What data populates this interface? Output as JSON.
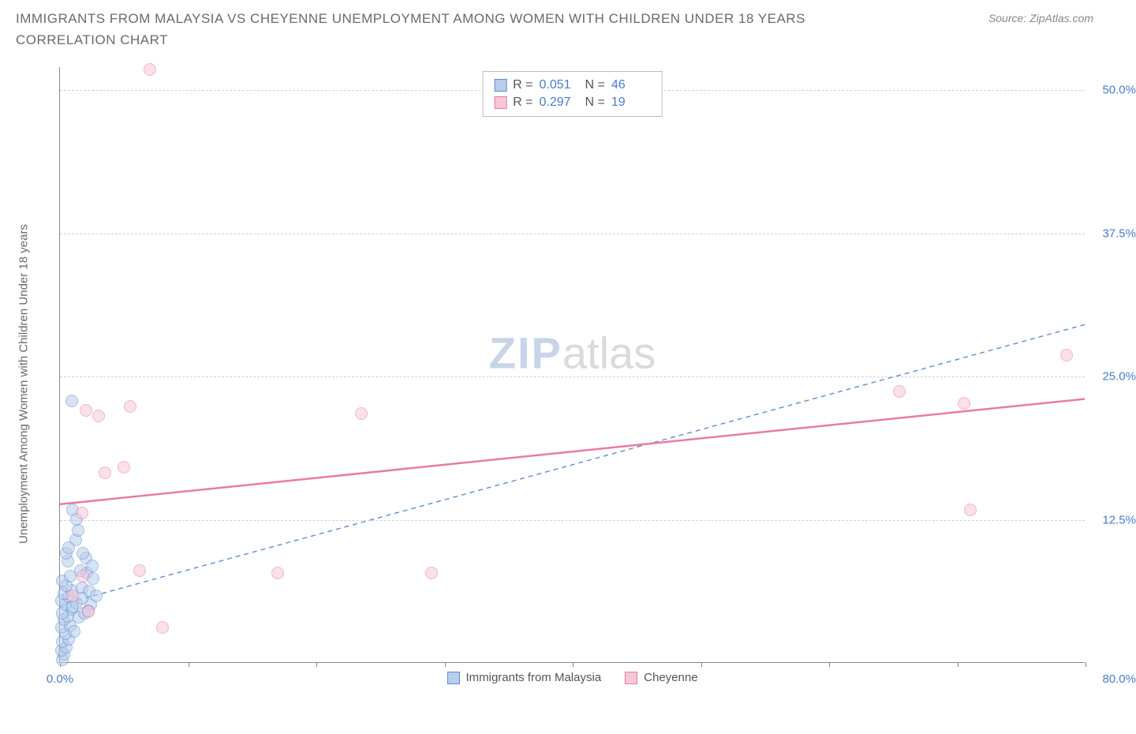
{
  "title": "IMMIGRANTS FROM MALAYSIA VS CHEYENNE UNEMPLOYMENT AMONG WOMEN WITH CHILDREN UNDER 18 YEARS CORRELATION CHART",
  "source": "Source: ZipAtlas.com",
  "y_axis_label": "Unemployment Among Women with Children Under 18 years",
  "watermark_a": "ZIP",
  "watermark_b": "atlas",
  "chart": {
    "type": "scatter",
    "background_color": "#ffffff",
    "grid_color": "#d0d0d0",
    "axis_color": "#888888",
    "tick_label_color": "#4a7bc8",
    "xlim": [
      0,
      80
    ],
    "ylim": [
      0,
      52
    ],
    "y_ticks": [
      12.5,
      25.0,
      37.5,
      50.0
    ],
    "y_tick_labels": [
      "12.5%",
      "25.0%",
      "37.5%",
      "50.0%"
    ],
    "x_ticks": [
      0,
      10,
      20,
      30,
      40,
      50,
      60,
      70,
      80
    ],
    "x_left_label": "0.0%",
    "x_right_label": "80.0%",
    "marker_radius": 8,
    "series": [
      {
        "name": "Immigrants from Malaysia",
        "fill": "#b7cdeb",
        "stroke": "#5e8bd0",
        "fill_opacity": 0.55,
        "R": "0.051",
        "N": "46",
        "trend": {
          "x1": 0,
          "y1": 5.0,
          "x2": 80,
          "y2": 29.5,
          "dash": "6,5",
          "width": 1.4
        },
        "points": [
          [
            0.2,
            0.2
          ],
          [
            0.3,
            0.7
          ],
          [
            0.1,
            1.0
          ],
          [
            0.5,
            1.3
          ],
          [
            0.2,
            1.8
          ],
          [
            0.7,
            2.0
          ],
          [
            0.4,
            2.5
          ],
          [
            0.1,
            3.0
          ],
          [
            0.8,
            3.2
          ],
          [
            0.3,
            3.7
          ],
          [
            0.6,
            4.0
          ],
          [
            0.2,
            4.3
          ],
          [
            0.9,
            4.6
          ],
          [
            0.4,
            5.0
          ],
          [
            0.1,
            5.4
          ],
          [
            0.7,
            5.7
          ],
          [
            0.3,
            6.0
          ],
          [
            0.9,
            6.3
          ],
          [
            0.5,
            6.7
          ],
          [
            0.2,
            7.1
          ],
          [
            0.8,
            7.5
          ],
          [
            1.3,
            5.2
          ],
          [
            1.5,
            3.9
          ],
          [
            1.1,
            2.7
          ],
          [
            1.7,
            6.5
          ],
          [
            1.9,
            4.3
          ],
          [
            2.1,
            7.8
          ],
          [
            2.4,
            5.0
          ],
          [
            2.0,
            9.1
          ],
          [
            1.2,
            10.7
          ],
          [
            1.4,
            11.5
          ],
          [
            1.0,
            13.3
          ],
          [
            0.6,
            8.8
          ],
          [
            1.6,
            8.0
          ],
          [
            1.8,
            9.5
          ],
          [
            2.3,
            6.2
          ],
          [
            2.6,
            7.3
          ],
          [
            2.2,
            4.5
          ],
          [
            0.9,
            22.8
          ],
          [
            2.8,
            5.8
          ],
          [
            1.3,
            12.5
          ],
          [
            0.5,
            9.5
          ],
          [
            1.0,
            4.8
          ],
          [
            0.7,
            10.0
          ],
          [
            2.5,
            8.4
          ],
          [
            1.7,
            5.6
          ]
        ]
      },
      {
        "name": "Cheyenne",
        "fill": "#f7c7d7",
        "stroke": "#e87ba4",
        "fill_opacity": 0.55,
        "R": "0.297",
        "N": "19",
        "trend": {
          "x1": 0,
          "y1": 13.8,
          "x2": 80,
          "y2": 23.0,
          "dash": "none",
          "width": 2.5
        },
        "points": [
          [
            7.0,
            51.7
          ],
          [
            2.0,
            22.0
          ],
          [
            3.0,
            21.5
          ],
          [
            5.5,
            22.3
          ],
          [
            3.5,
            16.5
          ],
          [
            5.0,
            17.0
          ],
          [
            1.7,
            13.0
          ],
          [
            6.2,
            8.0
          ],
          [
            8.0,
            3.0
          ],
          [
            17.0,
            7.8
          ],
          [
            23.5,
            21.7
          ],
          [
            29.0,
            7.8
          ],
          [
            65.5,
            23.6
          ],
          [
            70.5,
            22.6
          ],
          [
            78.5,
            26.8
          ],
          [
            71.0,
            13.3
          ],
          [
            1.8,
            7.5
          ],
          [
            2.2,
            4.4
          ],
          [
            1.0,
            5.8
          ]
        ]
      }
    ],
    "legend_bottom": [
      {
        "label": "Immigrants from Malaysia",
        "fill": "#b7cdeb",
        "stroke": "#5e8bd0"
      },
      {
        "label": "Cheyenne",
        "fill": "#f7c7d7",
        "stroke": "#e87ba4"
      }
    ]
  }
}
